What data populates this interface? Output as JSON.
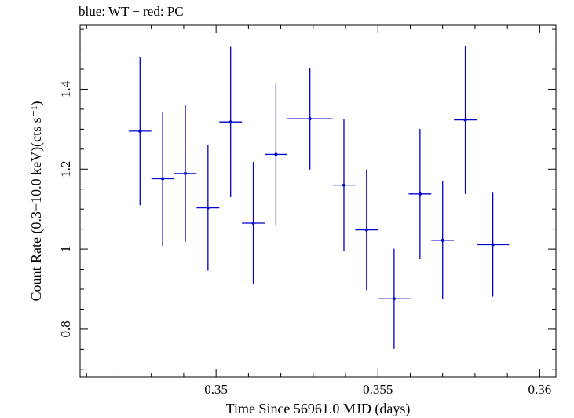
{
  "title": "blue: WT − red: PC",
  "chart_data": {
    "type": "scatter",
    "xlabel": "Time Since 56961.0 MJD (days)",
    "ylabel": "Count Rate (0.3−10.0 keV)(cts s⁻¹)",
    "xlim": [
      0.3458,
      0.3605
    ],
    "ylim": [
      0.68,
      1.56
    ],
    "x_ticks": [
      0.35,
      0.355,
      0.36
    ],
    "x_tick_labels": [
      "0.35",
      "0.355",
      "0.36"
    ],
    "y_ticks": [
      0.8,
      1.0,
      1.2,
      1.4
    ],
    "y_tick_labels": [
      "0.8",
      "1",
      "1.2",
      "1.4"
    ],
    "grid": false,
    "series": [
      {
        "name": "WT",
        "color": "#0000cc",
        "points": [
          {
            "x": 0.34765,
            "xerr": 0.00035,
            "y": 1.295,
            "yerr_low": 0.185,
            "yerr_high": 0.185
          },
          {
            "x": 0.34835,
            "xerr": 0.00035,
            "y": 1.176,
            "yerr_low": 0.168,
            "yerr_high": 0.168
          },
          {
            "x": 0.34905,
            "xerr": 0.00035,
            "y": 1.189,
            "yerr_low": 0.171,
            "yerr_high": 0.171
          },
          {
            "x": 0.34975,
            "xerr": 0.00035,
            "y": 1.103,
            "yerr_low": 0.157,
            "yerr_high": 0.157
          },
          {
            "x": 0.35045,
            "xerr": 0.00035,
            "y": 1.318,
            "yerr_low": 0.188,
            "yerr_high": 0.188
          },
          {
            "x": 0.35115,
            "xerr": 0.00035,
            "y": 1.065,
            "yerr_low": 0.153,
            "yerr_high": 0.153
          },
          {
            "x": 0.35185,
            "xerr": 0.00035,
            "y": 1.237,
            "yerr_low": 0.177,
            "yerr_high": 0.177
          },
          {
            "x": 0.3529,
            "xerr": 0.0007,
            "y": 1.326,
            "yerr_low": 0.127,
            "yerr_high": 0.127
          },
          {
            "x": 0.35395,
            "xerr": 0.00035,
            "y": 1.16,
            "yerr_low": 0.166,
            "yerr_high": 0.166
          },
          {
            "x": 0.35465,
            "xerr": 0.00035,
            "y": 1.048,
            "yerr_low": 0.151,
            "yerr_high": 0.151
          },
          {
            "x": 0.3555,
            "xerr": 0.0005,
            "y": 0.876,
            "yerr_low": 0.125,
            "yerr_high": 0.125
          },
          {
            "x": 0.3563,
            "xerr": 0.00035,
            "y": 1.138,
            "yerr_low": 0.163,
            "yerr_high": 0.163
          },
          {
            "x": 0.357,
            "xerr": 0.00035,
            "y": 1.022,
            "yerr_low": 0.147,
            "yerr_high": 0.147
          },
          {
            "x": 0.3577,
            "xerr": 0.00035,
            "y": 1.323,
            "yerr_low": 0.185,
            "yerr_high": 0.185
          },
          {
            "x": 0.35855,
            "xerr": 0.0005,
            "y": 1.011,
            "yerr_low": 0.13,
            "yerr_high": 0.13
          }
        ]
      }
    ]
  }
}
